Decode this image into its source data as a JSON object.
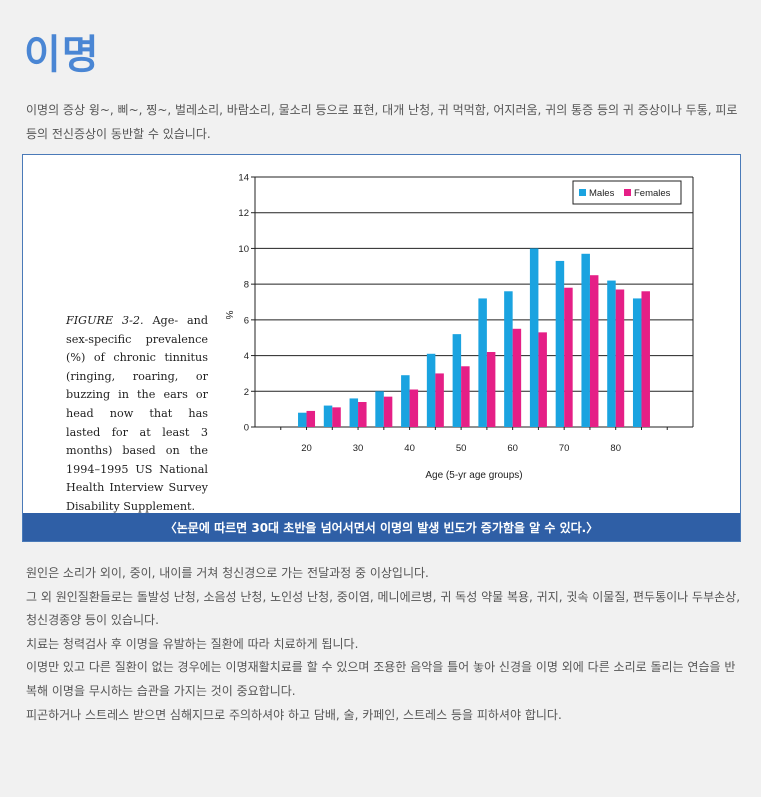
{
  "page": {
    "title": "이명",
    "intro": "이명의 증상 윙~, 삐~, 찡~, 벌레소리, 바람소리, 물소리 등으로 표현, 대개 난청, 귀 먹먹함, 어지러움, 귀의 통증 등의 귀 증상이나 두통, 피로 등의 전신증상이 동반할 수 있습니다.",
    "figure_caption_label": "FIGURE 3-2.",
    "figure_caption_text": "Age- and sex-specific prevalence (%) of chronic tinnitus (ringing, roaring, or buzzing in the ears or head now that has lasted for at least 3 months) based on the 1994–1995 US National Health Interview Survey Disability Supplement.",
    "figure_banner": "〈논문에 따르면 30대 초반을 넘어서면서 이명의 발생 빈도가 증가함을 알 수 있다.〉",
    "body_paragraphs": [
      "원인은 소리가 외이, 중이, 내이를 거쳐 청신경으로 가는 전달과정 중 이상입니다.",
      "그 외 원인질환들로는 돌발성 난청, 소음성 난청, 노인성 난청, 중이염, 메니에르병, 귀 독성 약물 복용, 귀지, 귓속 이물질, 편두통이나 두부손상, 청신경종양 등이 있습니다.",
      "치료는 청력검사 후 이명을 유발하는 질환에 따라 치료하게 됩니다.",
      "이명만 있고 다른 질환이 없는 경우에는 이명재활치료를 할 수 있으며 조용한 음악을 틀어 놓아 신경을 이명 외에 다른 소리로 돌리는 연습을 반복해 이명을 무시하는 습관을 가지는 것이 중요합니다.",
      "피곤하거나 스트레스 받으면 심해지므로 주의하셔야 하고 담배, 술, 카페인, 스트레스 등을 피하셔야 합니다."
    ]
  },
  "chart_data": {
    "type": "bar",
    "xlabel": "Age (5-yr age groups)",
    "ylabel": "%",
    "ylim": [
      0,
      14
    ],
    "yticks": [
      0,
      2,
      4,
      6,
      8,
      10,
      12,
      14
    ],
    "xlim": [
      10,
      95
    ],
    "xticks": [
      20,
      30,
      40,
      50,
      60,
      70,
      80
    ],
    "x": [
      20,
      25,
      30,
      35,
      40,
      45,
      50,
      55,
      60,
      65,
      70,
      75,
      80,
      85
    ],
    "grid": true,
    "legend_position": "top-right",
    "series": [
      {
        "name": "Males",
        "color": "#1aa3e0",
        "values": [
          0.8,
          1.2,
          1.6,
          2.0,
          2.9,
          4.1,
          5.2,
          7.2,
          7.6,
          10.0,
          9.3,
          9.7,
          8.2,
          7.2
        ]
      },
      {
        "name": "Females",
        "color": "#e51f86",
        "values": [
          0.9,
          1.1,
          1.4,
          1.7,
          2.1,
          3.0,
          3.4,
          4.2,
          5.5,
          5.3,
          7.8,
          8.5,
          7.7,
          7.6
        ]
      }
    ]
  }
}
